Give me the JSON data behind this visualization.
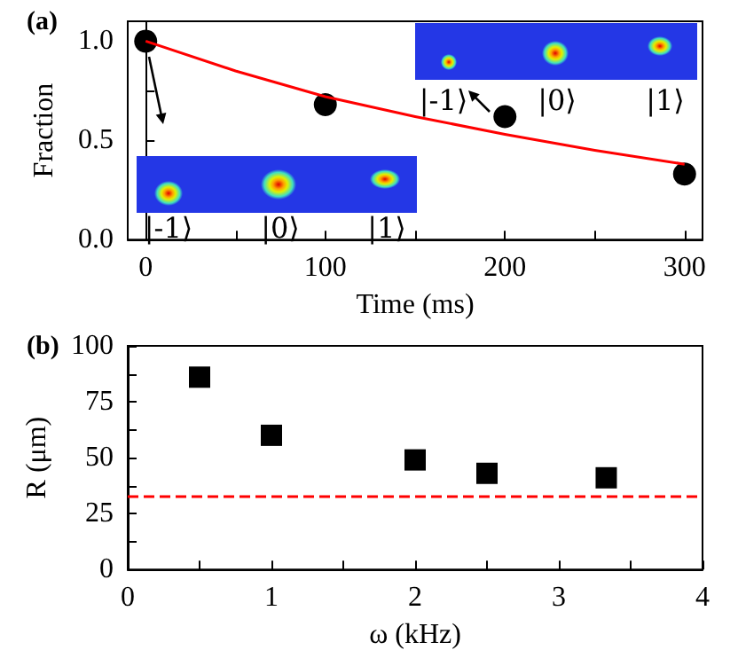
{
  "chart_data": [
    {
      "type": "scatter",
      "title": "(a)",
      "xlabel": "Time (ms)",
      "ylabel": "Fraction",
      "xlim": [
        -10,
        310
      ],
      "ylim": [
        0,
        1.1
      ],
      "xticks": [
        0,
        {
          "value": 50,
          "label": null
        },
        100,
        {
          "value": 150,
          "label": null
        },
        200,
        {
          "value": 250,
          "label": null
        },
        300
      ],
      "yticks": [
        {
          "value": 0,
          "label": "0.0"
        },
        {
          "value": 0.25,
          "label": null
        },
        0.5,
        {
          "value": 0.75,
          "label": null
        },
        {
          "value": 1,
          "label": "1.0"
        }
      ],
      "series": [
        {
          "color": "#000000",
          "marker": "circle",
          "x": [
            0,
            100,
            200,
            300
          ],
          "values": [
            1.0,
            0.68,
            0.62,
            0.33
          ]
        },
        {
          "type": "line",
          "color": "#ff0000",
          "marker": "none",
          "x": [
            0,
            50,
            100,
            150,
            200,
            250,
            300
          ],
          "values": [
            1.0,
            0.85,
            0.72,
            0.62,
            0.53,
            0.45,
            0.38
          ]
        }
      ],
      "annotations": [
        "|-1⟩",
        "|0⟩",
        "|1⟩",
        "|-1⟩",
        "|0⟩",
        "|1⟩"
      ]
    },
    {
      "type": "scatter",
      "title": "(b)",
      "xlabel": "ω (kHz)",
      "ylabel": "R (μm)",
      "xlim": [
        0,
        4
      ],
      "ylim": [
        0,
        100
      ],
      "xticks": [
        0,
        {
          "value": 0.5,
          "label": null
        },
        1,
        {
          "value": 1.5,
          "label": null
        },
        2,
        {
          "value": 2.5,
          "label": null
        },
        3,
        {
          "value": 3.5,
          "label": null
        },
        4
      ],
      "yticks": [
        0,
        {
          "value": 12.5,
          "label": null
        },
        25,
        {
          "value": 37.5,
          "label": null
        },
        50,
        {
          "value": 62.5,
          "label": null
        },
        75,
        {
          "value": 87.5,
          "label": null
        },
        100
      ],
      "series": [
        {
          "color": "#000000",
          "marker": "square",
          "x": [
            0.5,
            1,
            2,
            2.5,
            3.33
          ],
          "values": [
            86,
            60,
            49,
            43,
            41
          ]
        }
      ],
      "ref_lines": [
        {
          "axis": "y",
          "value": 33,
          "color": "#ff0000",
          "line_style": "dashed"
        }
      ]
    }
  ]
}
